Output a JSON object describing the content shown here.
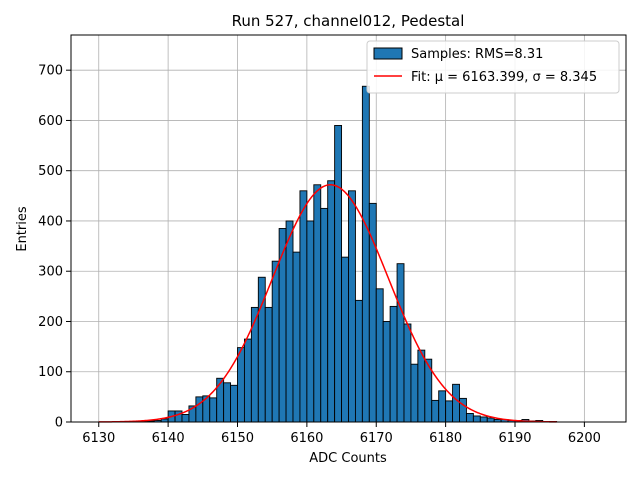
{
  "chart_data": {
    "type": "bar",
    "title": "Run 527, channel012, Pedestal",
    "xlabel": "ADC Counts",
    "ylabel": "Entries",
    "xlim": [
      6126,
      6206
    ],
    "ylim": [
      0,
      770
    ],
    "xticks": [
      6130,
      6140,
      6150,
      6160,
      6170,
      6180,
      6190,
      6200
    ],
    "yticks": [
      0,
      100,
      200,
      300,
      400,
      500,
      600,
      700
    ],
    "grid": true,
    "legend_position": "top-right",
    "bin_width": 1,
    "histogram": {
      "name": "Samples: RMS=8.31",
      "color": "#1f77b4",
      "edge_color": "#000000",
      "bin_starts": [
        6134,
        6135,
        6136,
        6137,
        6138,
        6139,
        6140,
        6141,
        6142,
        6143,
        6144,
        6145,
        6146,
        6147,
        6148,
        6149,
        6150,
        6151,
        6152,
        6153,
        6154,
        6155,
        6156,
        6157,
        6158,
        6159,
        6160,
        6161,
        6162,
        6163,
        6164,
        6165,
        6166,
        6167,
        6168,
        6169,
        6170,
        6171,
        6172,
        6173,
        6174,
        6175,
        6176,
        6177,
        6178,
        6179,
        6180,
        6181,
        6182,
        6183,
        6184,
        6185,
        6186,
        6187,
        6188,
        6189,
        6190,
        6191,
        6192,
        6193,
        6194,
        6195
      ],
      "counts": [
        1,
        1,
        1,
        2,
        3,
        6,
        22,
        22,
        15,
        32,
        50,
        52,
        48,
        87,
        78,
        73,
        148,
        165,
        228,
        288,
        228,
        320,
        385,
        400,
        338,
        460,
        400,
        472,
        425,
        480,
        590,
        328,
        460,
        242,
        668,
        435,
        265,
        200,
        230,
        315,
        195,
        115,
        143,
        125,
        43,
        62,
        42,
        75,
        47,
        17,
        12,
        10,
        8,
        5,
        5,
        3,
        3,
        5,
        2,
        3,
        1,
        1
      ]
    },
    "fit": {
      "name": "Fit: μ = 6163.399, σ = 8.345",
      "color": "#ff0000",
      "mu": 6163.399,
      "sigma": 8.345,
      "amplitude": 472,
      "x_range": [
        6130,
        6196
      ]
    }
  }
}
